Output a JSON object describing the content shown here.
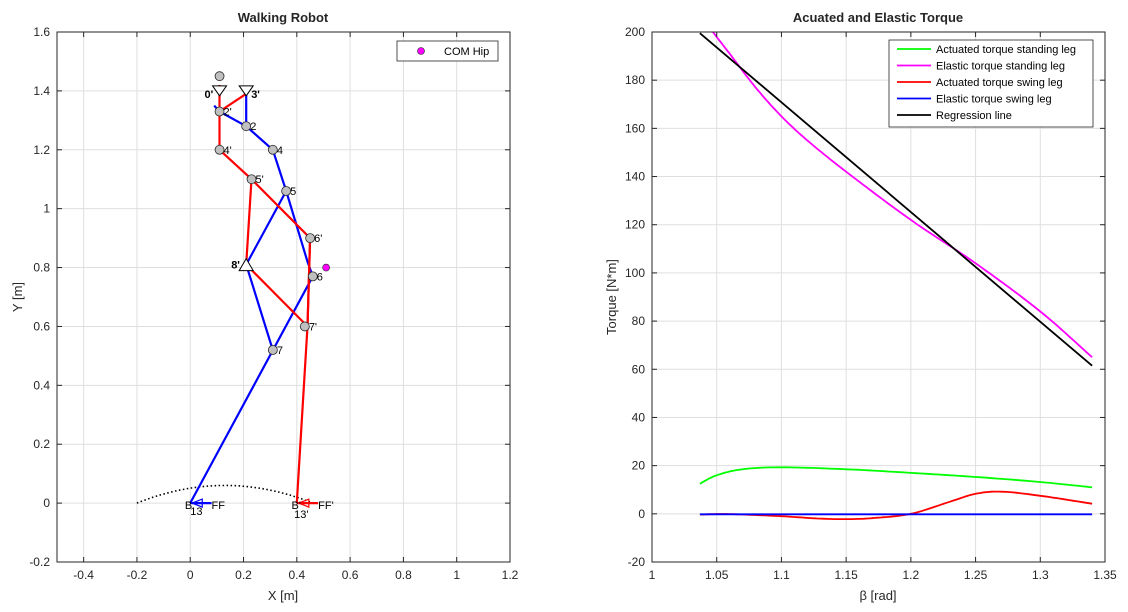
{
  "chart_data": [
    {
      "type": "line",
      "title": "Walking Robot",
      "xlabel": "X [m]",
      "ylabel": "Y [m]",
      "xlim": [
        -0.5,
        1.2
      ],
      "ylim": [
        -0.2,
        1.6
      ],
      "xticks": [
        -0.4,
        -0.2,
        0,
        0.2,
        0.4,
        0.6,
        0.8,
        1,
        1.2
      ],
      "yticks": [
        -0.2,
        0,
        0.2,
        0.4,
        0.6,
        0.8,
        1,
        1.2,
        1.4,
        1.6
      ],
      "xtick_labels": [
        "-0.4",
        "-0.2",
        "0",
        "0.2",
        "0.4",
        "0.6",
        "0.8",
        "1",
        "1.2"
      ],
      "ytick_labels": [
        "-0.2",
        "0",
        "0.2",
        "0.4",
        "0.6",
        "0.8",
        "1",
        "1.2",
        "1.4",
        "1.6"
      ],
      "grid": true,
      "legend": {
        "position": "top-right",
        "entries": [
          {
            "label": "COM Hip",
            "color": "#ff00ff",
            "marker": "circle"
          }
        ]
      },
      "blue_links": [
        [
          [
            0.21,
            1.39
          ],
          [
            0.21,
            1.28
          ],
          [
            0.31,
            1.2
          ],
          [
            0.36,
            1.06
          ],
          [
            0.44,
            0.82
          ],
          [
            0.46,
            0.77
          ]
        ],
        [
          [
            0.21,
            1.28
          ],
          [
            0.11,
            1.33
          ],
          [
            0.09,
            1.35
          ]
        ],
        [
          [
            0.46,
            0.77
          ],
          [
            0.0,
            0.0
          ]
        ],
        [
          [
            0.36,
            1.06
          ],
          [
            0.21,
            0.81
          ],
          [
            0.31,
            0.52
          ],
          [
            0.21,
            0.81
          ]
        ],
        [
          [
            0.0,
            0.0
          ],
          [
            0.08,
            0.0
          ]
        ]
      ],
      "red_links": [
        [
          [
            0.11,
            1.42
          ],
          [
            0.11,
            1.33
          ],
          [
            0.21,
            1.39
          ]
        ],
        [
          [
            0.11,
            1.33
          ],
          [
            0.11,
            1.2
          ],
          [
            0.23,
            1.1
          ],
          [
            0.45,
            0.9
          ],
          [
            0.44,
            0.6
          ],
          [
            0.21,
            0.81
          ],
          [
            0.23,
            1.1
          ]
        ],
        [
          [
            0.45,
            0.9
          ],
          [
            0.44,
            0.6
          ],
          [
            0.4,
            0.0
          ]
        ],
        [
          [
            0.4,
            0.0
          ],
          [
            0.48,
            0.0
          ]
        ]
      ],
      "joints": [
        {
          "label": "2'",
          "x": 0.11,
          "y": 1.33
        },
        {
          "label": "2",
          "x": 0.21,
          "y": 1.28
        },
        {
          "label": "4'",
          "x": 0.11,
          "y": 1.2
        },
        {
          "label": "4",
          "x": 0.31,
          "y": 1.2
        },
        {
          "label": "5'",
          "x": 0.23,
          "y": 1.1
        },
        {
          "label": "5",
          "x": 0.36,
          "y": 1.06
        },
        {
          "label": "6'",
          "x": 0.45,
          "y": 0.9
        },
        {
          "label": "6",
          "x": 0.46,
          "y": 0.77
        },
        {
          "label": "7'",
          "x": 0.43,
          "y": 0.6
        },
        {
          "label": "7",
          "x": 0.31,
          "y": 0.52
        },
        {
          "label": "",
          "x": 0.11,
          "y": 1.45
        }
      ],
      "pivots": [
        {
          "label": "0'",
          "x": 0.11,
          "y": 1.39
        },
        {
          "label": "3'",
          "x": 0.21,
          "y": 1.39
        },
        {
          "label": "8'",
          "x": 0.21,
          "y": 0.81
        }
      ],
      "foot_labels": [
        {
          "label": "B",
          "x": -0.02,
          "y": -0.01
        },
        {
          "label": "FF",
          "x": 0.08,
          "y": -0.01
        },
        {
          "label": "13",
          "x": 0.0,
          "y": -0.03
        },
        {
          "label": "B'",
          "x": 0.38,
          "y": -0.01
        },
        {
          "label": "FF'",
          "x": 0.48,
          "y": -0.01
        },
        {
          "label": "13'",
          "x": 0.39,
          "y": -0.04
        }
      ],
      "com_hip": {
        "x": 0.51,
        "y": 0.8
      },
      "trajectory": {
        "x_from": -0.2,
        "x_to": 0.47,
        "peak_x": 0.13,
        "peak_y": 0.06
      }
    },
    {
      "type": "line",
      "title": "Acuated and Elastic Torque",
      "xlabel": "β [rad]",
      "ylabel": "Torque [N*m]",
      "xlim": [
        1,
        1.35
      ],
      "ylim": [
        -20,
        200
      ],
      "xticks": [
        1,
        1.05,
        1.1,
        1.15,
        1.2,
        1.25,
        1.3,
        1.35
      ],
      "yticks": [
        -20,
        0,
        20,
        40,
        60,
        80,
        100,
        120,
        140,
        160,
        180,
        200
      ],
      "xtick_labels": [
        "1",
        "1.05",
        "1.1",
        "1.15",
        "1.2",
        "1.25",
        "1.3",
        "1.35"
      ],
      "ytick_labels": [
        "-20",
        "0",
        "20",
        "40",
        "60",
        "80",
        "100",
        "120",
        "140",
        "160",
        "180",
        "200"
      ],
      "grid": true,
      "legend": {
        "position": "top-right"
      },
      "series": [
        {
          "name": "Actuated torque standing leg",
          "color": "#00ff00",
          "x": [
            1.037,
            1.05,
            1.07,
            1.1,
            1.15,
            1.2,
            1.25,
            1.3,
            1.34
          ],
          "values": [
            12.5,
            16,
            18.5,
            19.3,
            18.5,
            17,
            15.3,
            13.2,
            11
          ]
        },
        {
          "name": "Elastic torque standing leg",
          "color": "#ff00ff",
          "x": [
            1.047,
            1.06,
            1.08,
            1.1,
            1.12,
            1.15,
            1.2,
            1.25,
            1.3,
            1.34
          ],
          "values": [
            200,
            191,
            177,
            165,
            155,
            142,
            122,
            104,
            84,
            65
          ]
        },
        {
          "name": "Actuated torque swing leg",
          "color": "#ff0000",
          "x": [
            1.037,
            1.06,
            1.1,
            1.13,
            1.15,
            1.17,
            1.2,
            1.23,
            1.25,
            1.27,
            1.3,
            1.34
          ],
          "values": [
            -0.3,
            -0.1,
            -1,
            -2,
            -2.2,
            -1.8,
            0,
            5,
            8.3,
            9.2,
            7.5,
            4.2
          ]
        },
        {
          "name": "Elastic torque swing leg",
          "color": "#0000ff",
          "x": [
            1.037,
            1.1,
            1.2,
            1.3,
            1.34
          ],
          "values": [
            -0.2,
            -0.2,
            -0.2,
            -0.2,
            -0.2
          ]
        },
        {
          "name": "Regression line",
          "color": "#000000",
          "x": [
            1.037,
            1.34
          ],
          "values": [
            199.5,
            61.5
          ]
        }
      ]
    }
  ]
}
